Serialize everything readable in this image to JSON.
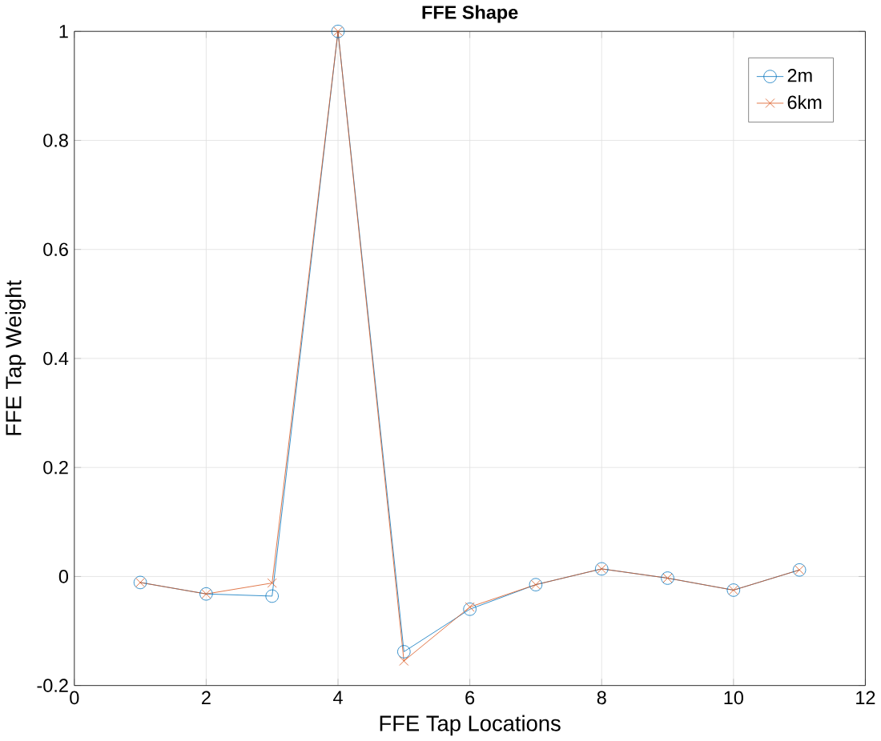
{
  "chart_data": {
    "type": "line",
    "title": "FFE Shape",
    "xlabel": "FFE Tap Locations",
    "ylabel": "FFE Tap Weight",
    "x": [
      1,
      2,
      3,
      4,
      5,
      6,
      7,
      8,
      9,
      10,
      11
    ],
    "series": [
      {
        "name": "2m",
        "color": "#0072bd",
        "marker": "circle",
        "values": [
          -0.011,
          -0.032,
          -0.036,
          1,
          -0.138,
          -0.06,
          -0.015,
          0.014,
          -0.003,
          -0.025,
          0.012
        ]
      },
      {
        "name": "6km",
        "color": "#d95319",
        "marker": "cross",
        "values": [
          -0.011,
          -0.032,
          -0.012,
          1,
          -0.155,
          -0.056,
          -0.015,
          0.014,
          -0.003,
          -0.025,
          0.012
        ]
      }
    ],
    "xlim": [
      0,
      12
    ],
    "xticks": [
      0,
      2,
      4,
      6,
      8,
      10,
      12
    ],
    "ylim": [
      -0.2,
      1
    ],
    "yticks": [
      -0.2,
      0,
      0.2,
      0.4,
      0.6,
      0.8,
      1
    ],
    "grid": true,
    "legend": "top right",
    "line_style": "solid"
  }
}
